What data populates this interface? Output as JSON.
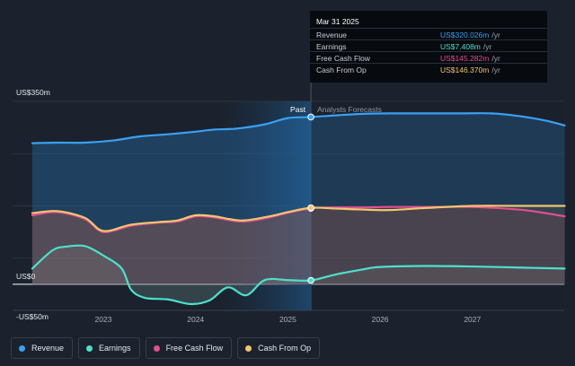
{
  "chart_data": {
    "type": "line",
    "y_axis": {
      "top_label": "US$350m",
      "zero_label": "US$0",
      "bottom_label": "-US$50m",
      "ylim": [
        -50,
        350
      ]
    },
    "x_axis": {
      "ticks": [
        "2023",
        "2024",
        "2025",
        "2026",
        "2027"
      ],
      "xlim": [
        2022.2,
        2028.0
      ]
    },
    "divider": {
      "x": 2025.25,
      "past_label": "Past",
      "forecast_label": "Analysts Forecasts"
    },
    "series": [
      {
        "name": "Revenue",
        "color": "#3aa0f2",
        "x": [
          2022.23,
          2022.5,
          2022.8,
          2023.1,
          2023.4,
          2023.7,
          2024.0,
          2024.2,
          2024.45,
          2024.75,
          2025.0,
          2025.25,
          2025.5,
          2025.8,
          2026.1,
          2026.5,
          2026.9,
          2027.2,
          2027.5,
          2027.8,
          2028.0
        ],
        "values": [
          270,
          271,
          271,
          275,
          283,
          287,
          292,
          296,
          298,
          306,
          318,
          320.0,
          323,
          326,
          327,
          327,
          327,
          327,
          322,
          313,
          304
        ]
      },
      {
        "name": "Earnings",
        "color": "#4ee0cc",
        "x": [
          2022.23,
          2022.45,
          2022.6,
          2022.8,
          2023.0,
          2023.2,
          2023.3,
          2023.45,
          2023.7,
          2023.95,
          2024.15,
          2024.35,
          2024.55,
          2024.75,
          2025.0,
          2025.25,
          2025.5,
          2025.8,
          2026.0,
          2026.5,
          2027.0,
          2027.5,
          2028.0
        ],
        "values": [
          30,
          65,
          72,
          73,
          55,
          30,
          -10,
          -26,
          -29,
          -38,
          -31,
          -6,
          -21,
          8,
          8,
          7.408,
          18,
          28,
          33,
          35,
          34,
          32,
          30
        ]
      },
      {
        "name": "Free Cash Flow",
        "color": "#e24f8f",
        "x": [
          2022.23,
          2022.5,
          2022.8,
          2023.0,
          2023.3,
          2023.6,
          2023.8,
          2024.0,
          2024.2,
          2024.5,
          2024.8,
          2025.0,
          2025.25,
          2025.5,
          2025.8,
          2026.1,
          2026.5,
          2027.0,
          2027.5,
          2027.8,
          2028.0
        ],
        "values": [
          132,
          138,
          125,
          100,
          112,
          118,
          120,
          130,
          128,
          120,
          128,
          137,
          145.282,
          147,
          147,
          148,
          148,
          148,
          143,
          136,
          130
        ]
      },
      {
        "name": "Cash From Op",
        "color": "#f3c56f",
        "x": [
          2022.23,
          2022.5,
          2022.8,
          2023.0,
          2023.3,
          2023.6,
          2023.8,
          2024.0,
          2024.2,
          2024.5,
          2024.8,
          2025.0,
          2025.25,
          2025.5,
          2025.8,
          2026.1,
          2026.5,
          2027.0,
          2027.5,
          2028.0
        ],
        "values": [
          136,
          140,
          127,
          102,
          114,
          119,
          122,
          132,
          130,
          122,
          130,
          138,
          146.37,
          145,
          143,
          142,
          146,
          150,
          150,
          150
        ]
      }
    ]
  },
  "tooltip": {
    "date": "Mar 31 2025",
    "rows": [
      {
        "label": "Revenue",
        "value": "US$320.026m",
        "unit": "/yr",
        "color": "#3aa0f2"
      },
      {
        "label": "Earnings",
        "value": "US$7.408m",
        "unit": "/yr",
        "color": "#4ee0cc"
      },
      {
        "label": "Free Cash Flow",
        "value": "US$145.282m",
        "unit": "/yr",
        "color": "#e24f8f"
      },
      {
        "label": "Cash From Op",
        "value": "US$146.370m",
        "unit": "/yr",
        "color": "#f3c56f"
      }
    ]
  },
  "legend": [
    {
      "label": "Revenue",
      "color": "#3aa0f2"
    },
    {
      "label": "Earnings",
      "color": "#4ee0cc"
    },
    {
      "label": "Free Cash Flow",
      "color": "#e24f8f"
    },
    {
      "label": "Cash From Op",
      "color": "#f3c56f"
    }
  ]
}
